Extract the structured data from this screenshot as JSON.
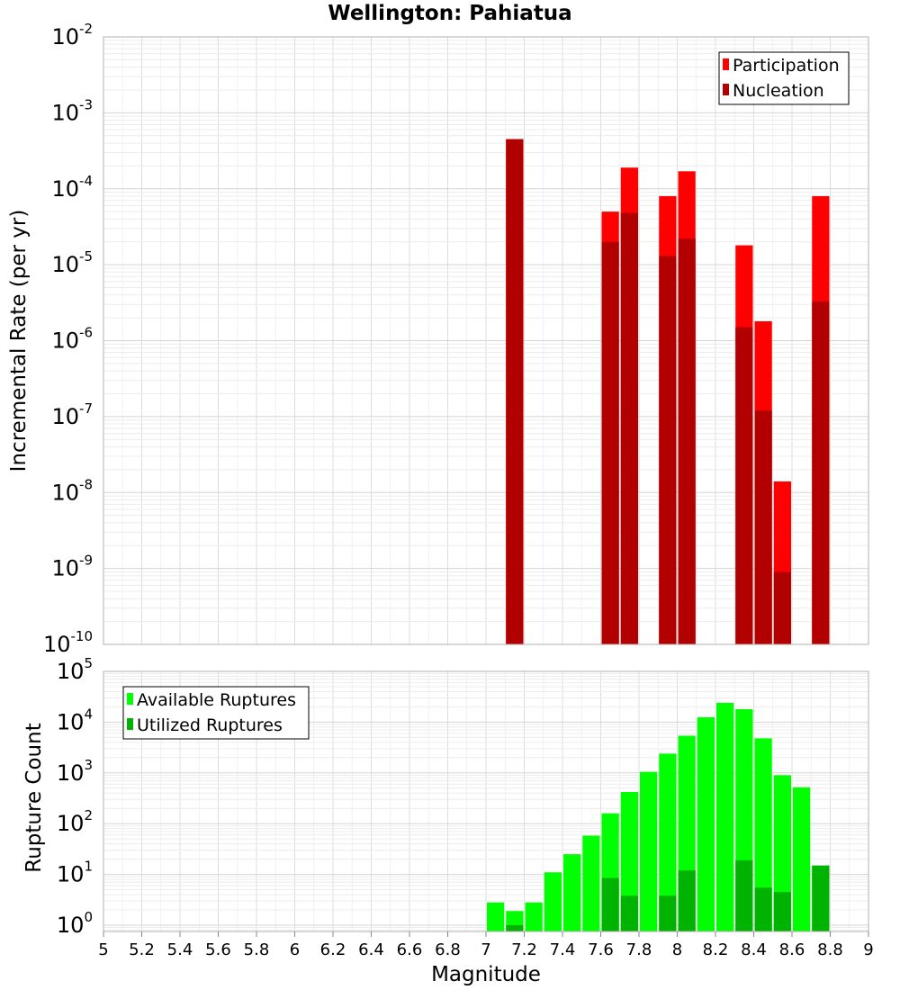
{
  "chart_data": {
    "title": "Wellington: Pahiatua",
    "xlabel": "Magnitude",
    "x_ticks": [
      "5",
      "5.2",
      "5.4",
      "5.6",
      "5.8",
      "6",
      "6.2",
      "6.4",
      "6.6",
      "6.8",
      "7",
      "7.2",
      "7.4",
      "7.6",
      "7.8",
      "8",
      "8.2",
      "8.4",
      "8.6",
      "8.8",
      "9"
    ],
    "xlim": [
      5,
      9
    ],
    "bin_width": 0.1,
    "panels": [
      {
        "type": "bar",
        "ylabel": "Incremental Rate (per yr)",
        "yscale": "log",
        "ylim": [
          1e-10,
          0.01
        ],
        "y_tick_exponents": [
          -10,
          -9,
          -8,
          -7,
          -6,
          -5,
          -4,
          -3,
          -2
        ],
        "grid": true,
        "legend_position": "top-right",
        "series": [
          {
            "name": "Participation",
            "color": "#ff0000",
            "points": [
              [
                7.15,
                0.00045
              ],
              [
                7.65,
                5e-05
              ],
              [
                7.75,
                0.00019
              ],
              [
                7.95,
                8e-05
              ],
              [
                8.05,
                0.00017
              ],
              [
                8.35,
                1.8e-05
              ],
              [
                8.45,
                1.8e-06
              ],
              [
                8.55,
                1.4e-08
              ],
              [
                8.75,
                8e-05
              ]
            ]
          },
          {
            "name": "Nucleation",
            "color": "#b20000",
            "points": [
              [
                7.15,
                0.00045
              ],
              [
                7.65,
                2e-05
              ],
              [
                7.75,
                4.8e-05
              ],
              [
                7.95,
                1.3e-05
              ],
              [
                8.05,
                2.2e-05
              ],
              [
                8.35,
                1.5e-06
              ],
              [
                8.45,
                1.2e-07
              ],
              [
                8.55,
                9e-10
              ],
              [
                8.75,
                3.3e-06
              ]
            ]
          }
        ]
      },
      {
        "type": "bar",
        "ylabel": "Rupture Count",
        "yscale": "log",
        "ylim": [
          0.75,
          100000
        ],
        "y_tick_exponents": [
          0,
          1,
          2,
          3,
          4,
          5
        ],
        "grid": true,
        "legend_position": "top-left",
        "series": [
          {
            "name": "Available Ruptures",
            "color": "#00ff00",
            "points": [
              [
                7.05,
                2.8
              ],
              [
                7.15,
                1.9
              ],
              [
                7.25,
                2.8
              ],
              [
                7.35,
                11
              ],
              [
                7.45,
                25
              ],
              [
                7.55,
                58
              ],
              [
                7.65,
                160
              ],
              [
                7.75,
                420
              ],
              [
                7.85,
                1050
              ],
              [
                7.95,
                2400
              ],
              [
                8.05,
                5400
              ],
              [
                8.15,
                12500
              ],
              [
                8.25,
                24000
              ],
              [
                8.35,
                18000
              ],
              [
                8.45,
                4800
              ],
              [
                8.55,
                900
              ],
              [
                8.65,
                520
              ],
              [
                8.75,
                14.5
              ]
            ]
          },
          {
            "name": "Utilized Ruptures",
            "color": "#00b300",
            "points": [
              [
                7.15,
                1
              ],
              [
                7.65,
                8.5
              ],
              [
                7.75,
                3.8
              ],
              [
                7.95,
                3.8
              ],
              [
                8.05,
                12
              ],
              [
                8.35,
                19
              ],
              [
                8.45,
                5.5
              ],
              [
                8.55,
                4.5
              ],
              [
                8.75,
                15
              ]
            ]
          }
        ]
      }
    ]
  }
}
